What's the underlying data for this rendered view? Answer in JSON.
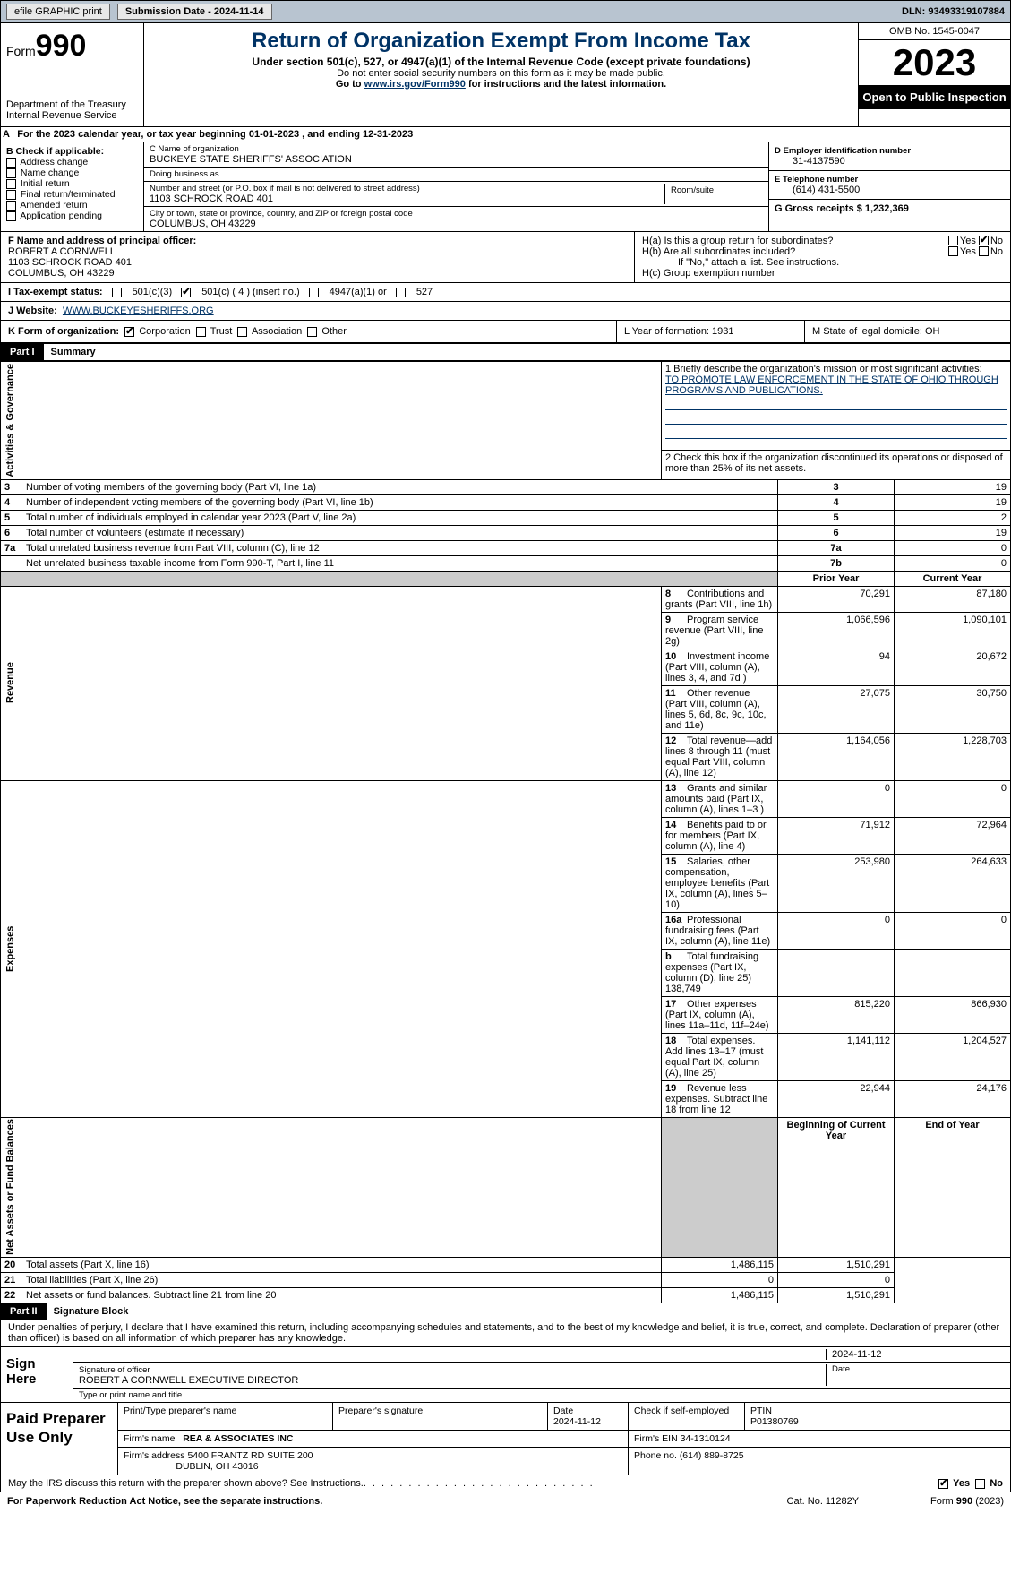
{
  "topbar": {
    "efile": "efile GRAPHIC print",
    "submission_label": "Submission Date - 2024-11-14",
    "dln_label": "DLN: 93493319107884"
  },
  "header": {
    "form_prefix": "Form",
    "form_no": "990",
    "dept": "Department of the Treasury Internal Revenue Service",
    "title": "Return of Organization Exempt From Income Tax",
    "subtitle": "Under section 501(c), 527, or 4947(a)(1) of the Internal Revenue Code (except private foundations)",
    "note1": "Do not enter social security numbers on this form as it may be made public.",
    "note2_pre": "Go to ",
    "note2_link": "www.irs.gov/Form990",
    "note2_post": " for instructions and the latest information.",
    "omb": "OMB No. 1545-0047",
    "year": "2023",
    "inspect": "Open to Public Inspection"
  },
  "row_a": "For the 2023 calendar year, or tax year beginning 01-01-2023   , and ending 12-31-2023",
  "box_b": {
    "label": "B Check if applicable:",
    "items": [
      "Address change",
      "Name change",
      "Initial return",
      "Final return/terminated",
      "Amended return",
      "Application pending"
    ]
  },
  "box_c": {
    "name_label": "C Name of organization",
    "name": "BUCKEYE STATE SHERIFFS' ASSOCIATION",
    "dba_label": "Doing business as",
    "dba": "",
    "street_label": "Number and street (or P.O. box if mail is not delivered to street address)",
    "street": "1103 SCHROCK ROAD 401",
    "room_label": "Room/suite",
    "city_label": "City or town, state or province, country, and ZIP or foreign postal code",
    "city": "COLUMBUS, OH  43229"
  },
  "box_d": {
    "label": "D Employer identification number",
    "val": "31-4137590"
  },
  "box_e": {
    "label": "E Telephone number",
    "val": "(614) 431-5500"
  },
  "box_g": {
    "label": "G Gross receipts $ 1,232,369"
  },
  "box_f": {
    "label": "F  Name and address of principal officer:",
    "line1": "ROBERT A CORNWELL",
    "line2": "1103 SCHROCK ROAD 401",
    "line3": "COLUMBUS, OH  43229"
  },
  "box_h": {
    "ha": "H(a)  Is this a group return for subordinates?",
    "hb": "H(b)  Are all subordinates included?",
    "hb_note": "If \"No,\" attach a list. See instructions.",
    "hc": "H(c)  Group exemption number",
    "yes": "Yes",
    "no": "No"
  },
  "row_i": {
    "label": "I   Tax-exempt status:",
    "o1": "501(c)(3)",
    "o2": "501(c) ( 4 ) (insert no.)",
    "o3": "4947(a)(1) or",
    "o4": "527"
  },
  "row_j": {
    "label": "J   Website:",
    "val": "WWW.BUCKEYESHERIFFS.ORG"
  },
  "row_k": {
    "label": "K Form of organization:",
    "o1": "Corporation",
    "o2": "Trust",
    "o3": "Association",
    "o4": "Other"
  },
  "row_l": "L Year of formation: 1931",
  "row_m": "M State of legal domicile: OH",
  "part1": {
    "hdr": "Part I",
    "title": "Summary"
  },
  "summary": {
    "side_gov": "Activities & Governance",
    "side_rev": "Revenue",
    "side_exp": "Expenses",
    "side_net": "Net Assets or Fund Balances",
    "l1a": "1  Briefly describe the organization's mission or most significant activities:",
    "l1b": "TO PROMOTE LAW ENFORCEMENT IN THE STATE OF OHIO THROUGH PROGRAMS AND PUBLICATIONS.",
    "l2": "2   Check this box      if the organization discontinued its operations or disposed of more than 25% of its net assets.",
    "rows_gov": [
      {
        "n": "3",
        "t": "Number of voting members of the governing body (Part VI, line 1a)",
        "box": "3",
        "v": "19"
      },
      {
        "n": "4",
        "t": "Number of independent voting members of the governing body (Part VI, line 1b)",
        "box": "4",
        "v": "19"
      },
      {
        "n": "5",
        "t": "Total number of individuals employed in calendar year 2023 (Part V, line 2a)",
        "box": "5",
        "v": "2"
      },
      {
        "n": "6",
        "t": "Total number of volunteers (estimate if necessary)",
        "box": "6",
        "v": "19"
      },
      {
        "n": "7a",
        "t": "Total unrelated business revenue from Part VIII, column (C), line 12",
        "box": "7a",
        "v": "0"
      },
      {
        "n": "",
        "t": "Net unrelated business taxable income from Form 990-T, Part I, line 11",
        "box": "7b",
        "v": "0"
      }
    ],
    "col_prior": "Prior Year",
    "col_curr": "Current Year",
    "rows_rev": [
      {
        "n": "8",
        "t": "Contributions and grants (Part VIII, line 1h)",
        "p": "70,291",
        "c": "87,180"
      },
      {
        "n": "9",
        "t": "Program service revenue (Part VIII, line 2g)",
        "p": "1,066,596",
        "c": "1,090,101"
      },
      {
        "n": "10",
        "t": "Investment income (Part VIII, column (A), lines 3, 4, and 7d )",
        "p": "94",
        "c": "20,672"
      },
      {
        "n": "11",
        "t": "Other revenue (Part VIII, column (A), lines 5, 6d, 8c, 9c, 10c, and 11e)",
        "p": "27,075",
        "c": "30,750"
      },
      {
        "n": "12",
        "t": "Total revenue—add lines 8 through 11 (must equal Part VIII, column (A), line 12)",
        "p": "1,164,056",
        "c": "1,228,703"
      }
    ],
    "rows_exp": [
      {
        "n": "13",
        "t": "Grants and similar amounts paid (Part IX, column (A), lines 1–3 )",
        "p": "0",
        "c": "0"
      },
      {
        "n": "14",
        "t": "Benefits paid to or for members (Part IX, column (A), line 4)",
        "p": "71,912",
        "c": "72,964"
      },
      {
        "n": "15",
        "t": "Salaries, other compensation, employee benefits (Part IX, column (A), lines 5–10)",
        "p": "253,980",
        "c": "264,633"
      },
      {
        "n": "16a",
        "t": "Professional fundraising fees (Part IX, column (A), line 11e)",
        "p": "0",
        "c": "0"
      },
      {
        "n": "b",
        "t": "Total fundraising expenses (Part IX, column (D), line 25) 138,749",
        "p": "",
        "c": "",
        "grey": true
      },
      {
        "n": "17",
        "t": "Other expenses (Part IX, column (A), lines 11a–11d, 11f–24e)",
        "p": "815,220",
        "c": "866,930"
      },
      {
        "n": "18",
        "t": "Total expenses. Add lines 13–17 (must equal Part IX, column (A), line 25)",
        "p": "1,141,112",
        "c": "1,204,527"
      },
      {
        "n": "19",
        "t": "Revenue less expenses. Subtract line 18 from line 12",
        "p": "22,944",
        "c": "24,176"
      }
    ],
    "col_beg": "Beginning of Current Year",
    "col_end": "End of Year",
    "rows_net": [
      {
        "n": "20",
        "t": "Total assets (Part X, line 16)",
        "p": "1,486,115",
        "c": "1,510,291"
      },
      {
        "n": "21",
        "t": "Total liabilities (Part X, line 26)",
        "p": "0",
        "c": "0"
      },
      {
        "n": "22",
        "t": "Net assets or fund balances. Subtract line 21 from line 20",
        "p": "1,486,115",
        "c": "1,510,291"
      }
    ]
  },
  "part2": {
    "hdr": "Part II",
    "title": "Signature Block"
  },
  "sig_decl": "Under penalties of perjury, I declare that I have examined this return, including accompanying schedules and statements, and to the best of my knowledge and belief, it is true, correct, and complete. Declaration of preparer (other than officer) is based on all information of which preparer has any knowledge.",
  "sign_here": "Sign Here",
  "sig": {
    "date": "2024-11-12",
    "sig_of_officer": "Signature of officer",
    "officer": "ROBERT A CORNWELL  EXECUTIVE DIRECTOR",
    "type_name": "Type or print name and title",
    "date_label": "Date"
  },
  "paid": {
    "label": "Paid Preparer Use Only",
    "h1": "Print/Type preparer's name",
    "h2": "Preparer's signature",
    "h3": "Date",
    "h3v": "2024-11-12",
    "h4": "Check       if self-employed",
    "h5": "PTIN",
    "h5v": "P01380769",
    "firm_name_l": "Firm's name",
    "firm_name": "REA & ASSOCIATES INC",
    "firm_ein_l": "Firm's EIN",
    "firm_ein": "34-1310124",
    "firm_addr_l": "Firm's address",
    "firm_addr1": "5400 FRANTZ RD SUITE 200",
    "firm_addr2": "DUBLIN, OH  43016",
    "phone_l": "Phone no.",
    "phone": "(614) 889-8725"
  },
  "may": {
    "text": "May the IRS discuss this return with the preparer shown above? See Instructions.",
    "yes": "Yes",
    "no": "No"
  },
  "footer": {
    "left": "For Paperwork Reduction Act Notice, see the separate instructions.",
    "mid": "Cat. No. 11282Y",
    "right": "Form 990 (2023)"
  }
}
